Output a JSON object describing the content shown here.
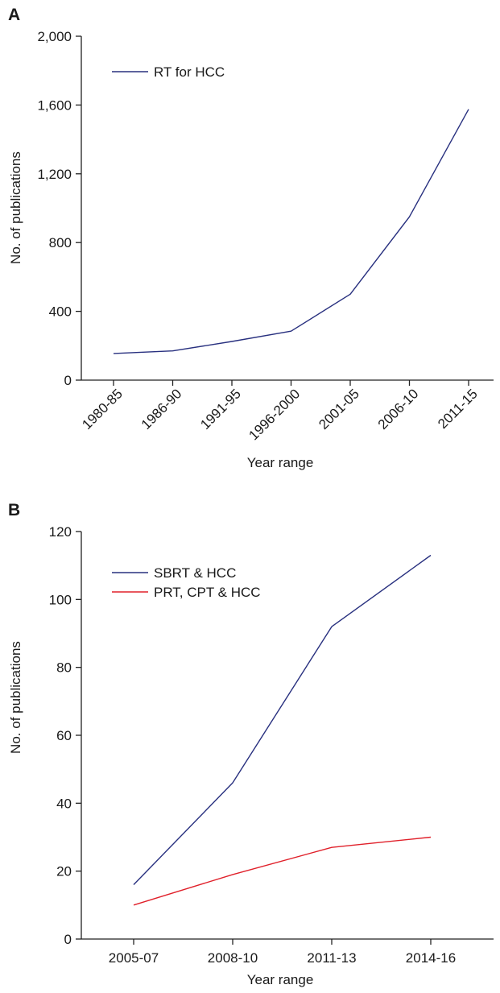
{
  "chart_data": [
    {
      "panel_label": "A",
      "type": "line",
      "categories": [
        "1980-85",
        "1986-90",
        "1991-95",
        "1996-2000",
        "2001-05",
        "2006-10",
        "2011-15"
      ],
      "series": [
        {
          "name": "RT for HCC",
          "color": "#28307f",
          "values": [
            155,
            170,
            225,
            285,
            500,
            950,
            1575
          ]
        }
      ],
      "xlabel": "Year range",
      "ylabel": "No. of publications",
      "ylim": [
        0,
        2000
      ],
      "yticks": [
        0,
        400,
        800,
        1200,
        1600,
        2000
      ],
      "ytick_labels": [
        "0",
        "400",
        "800",
        "1,200",
        "1,600",
        "2,000"
      ],
      "grid": false,
      "legend_position": "top-left"
    },
    {
      "panel_label": "B",
      "type": "line",
      "categories": [
        "2005-07",
        "2008-10",
        "2011-13",
        "2014-16"
      ],
      "series": [
        {
          "name": "SBRT & HCC",
          "color": "#28307f",
          "values": [
            16,
            46,
            92,
            113
          ]
        },
        {
          "name": "PRT, CPT & HCC",
          "color": "#e0202a",
          "values": [
            10,
            19,
            27,
            30
          ]
        }
      ],
      "xlabel": "Year range",
      "ylabel": "No. of publications",
      "ylim": [
        0,
        120
      ],
      "yticks": [
        0,
        20,
        40,
        60,
        80,
        100,
        120
      ],
      "ytick_labels": [
        "0",
        "20",
        "40",
        "60",
        "80",
        "100",
        "120"
      ],
      "grid": false,
      "legend_position": "top-left"
    }
  ]
}
